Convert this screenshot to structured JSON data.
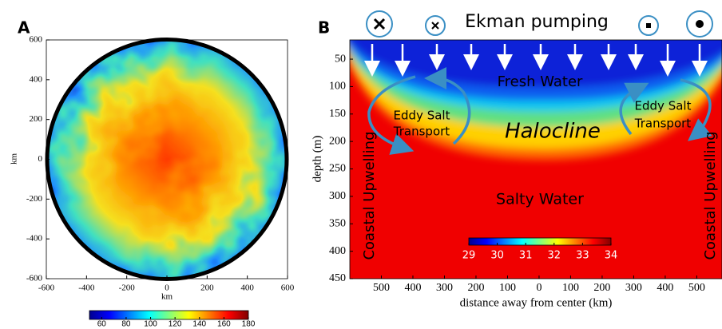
{
  "chart_data": [
    {
      "type": "contour",
      "panel_label": "A",
      "xlabel": "km",
      "ylabel": "km",
      "xlim": [
        -600,
        600
      ],
      "ylim": [
        -600,
        600
      ],
      "xticks": [
        -600,
        -400,
        -200,
        0,
        200,
        400,
        600
      ],
      "yticks": [
        -600,
        -400,
        -200,
        0,
        200,
        400,
        600
      ],
      "colorbar": {
        "colormap": "jet",
        "lim": [
          50,
          180
        ],
        "ticks": [
          60,
          80,
          100,
          120,
          140,
          160,
          180
        ]
      }
    },
    {
      "type": "section",
      "panel_label": "B",
      "title": "Ekman pumping",
      "xlabel": "distance away from center (km)",
      "ylabel": "depth (m)",
      "xlim": [
        -600,
        580
      ],
      "ylim": [
        15,
        450
      ],
      "y_inverted": true,
      "xticks": [
        {
          "value": -500,
          "label": "500"
        },
        {
          "value": -400,
          "label": "400"
        },
        {
          "value": -300,
          "label": "300"
        },
        {
          "value": -200,
          "label": "200"
        },
        {
          "value": -100,
          "label": "100"
        },
        0,
        100,
        200,
        300,
        400,
        500
      ],
      "yticks": [
        50,
        100,
        150,
        200,
        250,
        300,
        350,
        400,
        450
      ],
      "annotations": [
        "Fresh Water",
        "Eddy Salt",
        "Transport",
        "Eddy Salt",
        "Transport",
        "Halocline",
        "Salty Water",
        "Coastal Upwelling",
        "Coastal Upwelling"
      ],
      "colorbar": {
        "colormap": "jet",
        "lim": [
          29,
          34
        ],
        "ticks": [
          29,
          30,
          31,
          32,
          33,
          34
        ]
      }
    }
  ]
}
